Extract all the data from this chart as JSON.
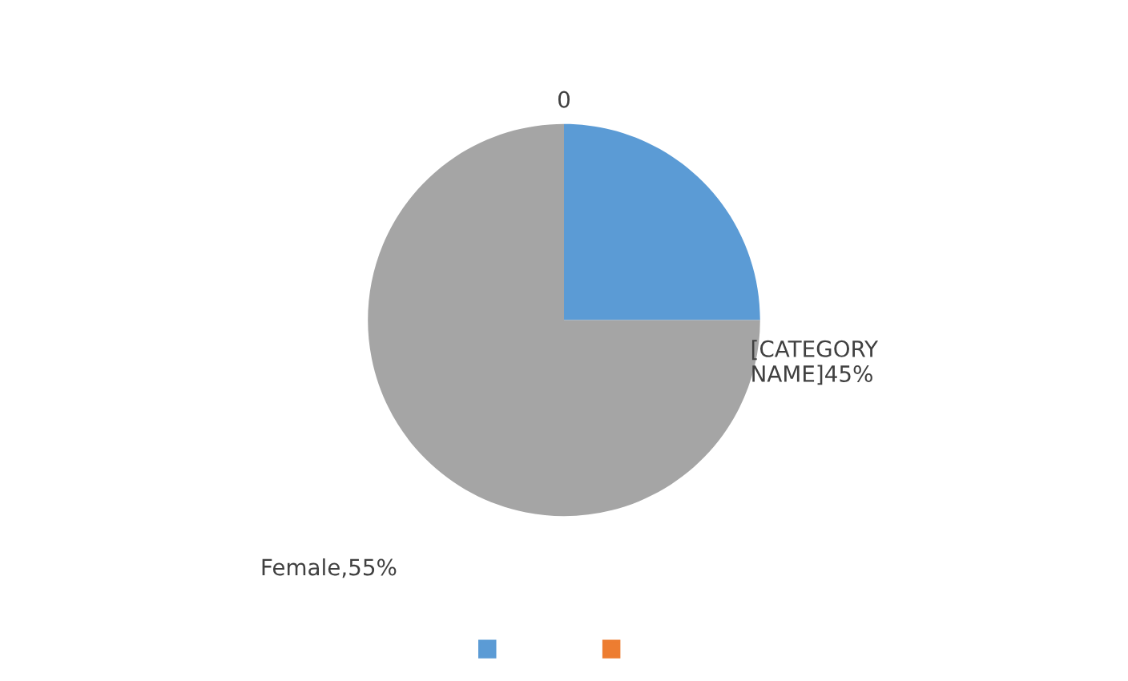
{
  "chart_data": {
    "type": "pie",
    "categories": [
      null,
      null,
      null
    ],
    "values": [
      25,
      0,
      75
    ],
    "colors": [
      "#5b9bd5",
      "#ed7d31",
      "#a5a5a5"
    ],
    "annotations": [
      "0",
      "[CATEGORY\nNAME]45%",
      "Female,55%"
    ]
  }
}
